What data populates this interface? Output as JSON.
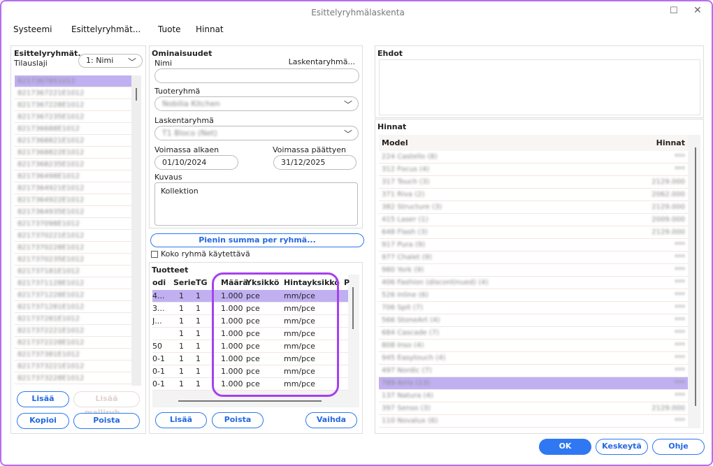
{
  "window": {
    "title": "Esittelyryhmälaskenta",
    "maximize_icon": "square-icon",
    "close_icon": "x-icon"
  },
  "menu": [
    "Systeemi",
    "Esittelyryhmät...",
    "Tuote",
    "Hinnat"
  ],
  "left": {
    "title": "Esittelyryhmät...",
    "subtitle": "Tilauslaji",
    "sort_select": "1: Nimi",
    "items": [
      "8217367851012",
      "8217367221E1012",
      "8217367228E1012",
      "8217367235E1012",
      "821736688E1012",
      "8217368821E1012",
      "8217368822E1012",
      "8217368235E1012",
      "821736498E1012",
      "8217364921E1012",
      "8217364922E1012",
      "8217364935E1012",
      "821737098E1012",
      "8217370221E1012",
      "8217370228E1012",
      "8217370235E1012",
      "821737181E1012",
      "8217371128E1012",
      "8217371228E1012",
      "8217371281E1012",
      "821737281E1012",
      "8217372221E1012",
      "8217372228E1012",
      "821737381E1012",
      "8217373221E1012",
      "8217373228E1012"
    ],
    "selected_index": 0,
    "buttons": {
      "add": "Lisää",
      "add_model": "Lisää malliryh...",
      "copy": "Kopioi",
      "delete": "Poista"
    }
  },
  "props": {
    "title": "Ominaisuudet",
    "name_label": "Nimi",
    "calc_group_link": "Laskentaryhmä...",
    "name_value": "",
    "product_group_label": "Tuoteryhmä",
    "product_group_value": "Nobilia Kitchen",
    "calc_group_label": "Laskentaryhmä",
    "calc_group_value": "T1 Bloco (Net)",
    "valid_from_label": "Voimassa alkaen",
    "valid_from": "01/10/2024",
    "valid_to_label": "Voimassa päättyen",
    "valid_to": "31/12/2025",
    "desc_label": "Kuvaus",
    "desc_value": "Kollektion",
    "min_sum_button": "Pienin summa per ryhmä...",
    "whole_group_checkbox": "Koko ryhmä käytettävä",
    "whole_group_checked": false
  },
  "products": {
    "title": "Tuotteet",
    "columns": [
      "odi",
      "Serie",
      "TG",
      "Määrä",
      "Yksikkö",
      "Hintayksikkö",
      "P"
    ],
    "rows": [
      [
        "4...",
        "1",
        "1",
        "1.000",
        "pce",
        "mm/pce"
      ],
      [
        "3...",
        "1",
        "1",
        "1.000",
        "pce",
        "mm/pce"
      ],
      [
        "J...",
        "1",
        "1",
        "1.000",
        "pce",
        "mm/pce"
      ],
      [
        "",
        "1",
        "1",
        "1.000",
        "pce",
        "mm/pce"
      ],
      [
        "50",
        "1",
        "1",
        "1.000",
        "pce",
        "mm/pce"
      ],
      [
        "0-1",
        "1",
        "1",
        "1.000",
        "pce",
        "mm/pce"
      ],
      [
        "0-1",
        "1",
        "1",
        "1.000",
        "pce",
        "mm/pce"
      ],
      [
        "0-1",
        "1",
        "1",
        "1.000",
        "pce",
        "mm/pce"
      ]
    ],
    "selected_index": 0,
    "buttons": {
      "add": "Lisää",
      "delete": "Poista",
      "change": "Vaihda"
    },
    "highlight_color": "#a740f0"
  },
  "conditions": {
    "title": "Ehdot"
  },
  "prices": {
    "title": "Hinnat",
    "columns": [
      "Model",
      "Hinnat"
    ],
    "rows": [
      [
        "224 Castello (8)",
        "***"
      ],
      [
        "312 Focus (4)",
        "***"
      ],
      [
        "317 Touch (3)",
        "2129.000"
      ],
      [
        "371 Riva (2)",
        "2062.000"
      ],
      [
        "382 Structure (3)",
        "2129.000"
      ],
      [
        "415 Laser (1)",
        "2009.000"
      ],
      [
        "648 Flash (3)",
        "2129.000"
      ],
      [
        "917 Pura (9)",
        "***"
      ],
      [
        "977 Chalet (9)",
        "***"
      ],
      [
        "980 York (9)",
        "***"
      ],
      [
        "406 Fashion (discontinued) (4)",
        "***"
      ],
      [
        "526 Inline (6)",
        "***"
      ],
      [
        "706 Spit (7)",
        "***"
      ],
      [
        "566 StoneArt (4)",
        "***"
      ],
      [
        "684 Cascade (7)",
        "***"
      ],
      [
        "808 Inso (4)",
        "***"
      ],
      [
        "945 Easytouch (4)",
        "***"
      ],
      [
        "497 Nordic (7)",
        "***"
      ],
      [
        "789 Arris (13)",
        "***"
      ],
      [
        "137 Natura (4)",
        "***"
      ],
      [
        "397 Senso (3)",
        "2129.000"
      ],
      [
        "110 Novalux (6)",
        "***"
      ]
    ],
    "selected_index": 18
  },
  "footer": {
    "ok": "OK",
    "cancel": "Keskeytä",
    "help": "Ohje"
  },
  "colors": {
    "accent": "#2f78f2",
    "selection": "#c0b0f2",
    "window_border": "#b86cf0"
  }
}
